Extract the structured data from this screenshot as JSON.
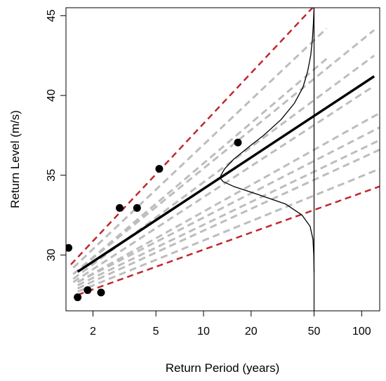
{
  "chart_data": {
    "type": "line",
    "title": "",
    "xlabel": "Return Period (years)",
    "ylabel": "Return Level (m/s)",
    "x_scale": "log",
    "xlim": [
      1.35,
      130
    ],
    "ylim": [
      26.5,
      45.5
    ],
    "x_ticks": [
      2,
      5,
      10,
      20,
      50,
      100
    ],
    "y_ticks": [
      30,
      35,
      40,
      45
    ],
    "grid": false,
    "colors": {
      "fit_line": "#000000",
      "bounds": "#c0282d",
      "samples": "#bdbdbd",
      "points": "#000000",
      "density": "#000000",
      "vertical_line": "#000000"
    },
    "fitted_line": {
      "x": [
        1.6,
        120
      ],
      "y": [
        28.95,
        41.2
      ]
    },
    "upper_bound": {
      "x": [
        1.45,
        50
      ],
      "y": [
        29.4,
        45.6
      ]
    },
    "lower_bound": {
      "x": [
        1.6,
        130
      ],
      "y": [
        27.5,
        34.3
      ]
    },
    "sample_lines": [
      {
        "x": [
          1.6,
          130
        ],
        "y": [
          28.3,
          38.9
        ]
      },
      {
        "x": [
          1.6,
          130
        ],
        "y": [
          28.3,
          38.0
        ]
      },
      {
        "x": [
          1.6,
          130
        ],
        "y": [
          28.1,
          37.2
        ]
      },
      {
        "x": [
          1.6,
          130
        ],
        "y": [
          27.9,
          36.6
        ]
      },
      {
        "x": [
          1.6,
          130
        ],
        "y": [
          27.7,
          35.4
        ]
      },
      {
        "x": [
          1.5,
          120
        ],
        "y": [
          28.8,
          44.1
        ]
      },
      {
        "x": [
          1.5,
          120
        ],
        "y": [
          28.5,
          42.5
        ]
      },
      {
        "x": [
          1.5,
          120
        ],
        "y": [
          28.3,
          40.6
        ]
      },
      {
        "x": [
          1.5,
          60
        ],
        "y": [
          29.2,
          44.2
        ]
      },
      {
        "x": [
          1.5,
          60
        ],
        "y": [
          28.8,
          42.3
        ]
      }
    ],
    "points": {
      "x": [
        1.4,
        1.6,
        1.85,
        2.25,
        2.95,
        3.8,
        5.25,
        16.5
      ],
      "y": [
        30.45,
        27.35,
        27.8,
        27.65,
        32.95,
        32.95,
        35.4,
        37.05
      ]
    },
    "density_at": 50,
    "density": {
      "y": [
        28.9,
        30.0,
        31.0,
        31.8,
        32.5,
        33.2,
        33.8,
        34.3,
        34.6,
        34.8,
        35.0,
        35.4,
        36.0,
        36.8,
        37.5,
        38.5,
        39.5,
        40.5,
        41.5,
        42.5,
        43.5,
        44.5,
        45.5
      ],
      "x": [
        50,
        49.8,
        49.2,
        47.2,
        42,
        33,
        22,
        15.5,
        13.3,
        12.8,
        12.9,
        13.6,
        15.5,
        19.5,
        24,
        31,
        37.5,
        42.5,
        45.5,
        47.6,
        48.8,
        49.5,
        50
      ]
    }
  }
}
